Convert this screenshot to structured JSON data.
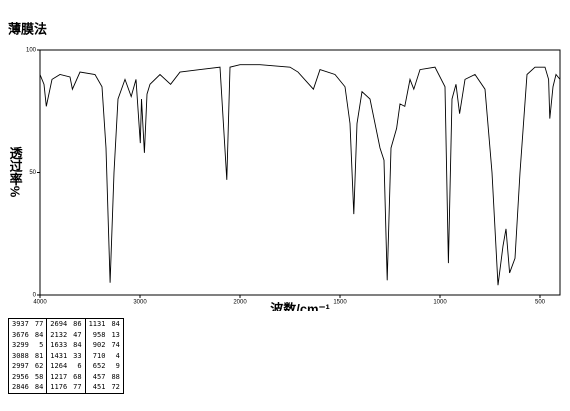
{
  "chart_data": {
    "type": "line",
    "title": "薄膜法",
    "xlabel": "波数/cm⁻¹",
    "ylabel": "透过率%",
    "xlim": [
      4000,
      400
    ],
    "xscale_break": 2000,
    "xticks": [
      4000,
      3000,
      2000,
      1500,
      1000,
      500
    ],
    "ylim": [
      0,
      100
    ],
    "yticks": [
      0,
      50,
      100
    ],
    "series": [
      {
        "color": "#000000",
        "x": [
          4000,
          3960,
          3937,
          3880,
          3800,
          3700,
          3676,
          3600,
          3450,
          3380,
          3340,
          3299,
          3260,
          3220,
          3150,
          3088,
          3040,
          2997,
          2985,
          2956,
          2930,
          2900,
          2800,
          2694,
          2600,
          2400,
          2200,
          2132,
          2100,
          2000,
          1900,
          1750,
          1710,
          1633,
          1600,
          1525,
          1475,
          1450,
          1431,
          1415,
          1390,
          1350,
          1300,
          1280,
          1264,
          1245,
          1217,
          1200,
          1176,
          1150,
          1131,
          1100,
          1025,
          975,
          958,
          940,
          920,
          902,
          875,
          825,
          775,
          740,
          710,
          685,
          670,
          652,
          625,
          600,
          565,
          525,
          475,
          457,
          451,
          435,
          420,
          400
        ],
        "values": [
          90,
          86,
          77,
          88,
          90,
          89,
          84,
          91,
          90,
          85,
          60,
          5,
          50,
          80,
          88,
          81,
          88,
          62,
          80,
          58,
          82,
          86,
          90,
          86,
          91,
          92,
          93,
          47,
          93,
          94,
          94,
          93,
          91,
          84,
          92,
          90,
          85,
          70,
          33,
          70,
          83,
          80,
          60,
          55,
          6,
          60,
          68,
          78,
          77,
          88,
          84,
          92,
          93,
          85,
          13,
          80,
          86,
          74,
          88,
          90,
          84,
          50,
          4,
          20,
          27,
          9,
          15,
          50,
          90,
          93,
          93,
          88,
          72,
          85,
          90,
          88
        ]
      }
    ]
  },
  "peak_table": {
    "rows": [
      [
        3937,
        77,
        2694,
        86,
        1131,
        84
      ],
      [
        3676,
        84,
        2132,
        47,
        958,
        13
      ],
      [
        3299,
        5,
        1633,
        84,
        902,
        74
      ],
      [
        3088,
        81,
        1431,
        33,
        710,
        4
      ],
      [
        2997,
        62,
        1264,
        6,
        652,
        9
      ],
      [
        2956,
        58,
        1217,
        68,
        457,
        88
      ],
      [
        2846,
        84,
        1176,
        77,
        451,
        72
      ]
    ]
  }
}
